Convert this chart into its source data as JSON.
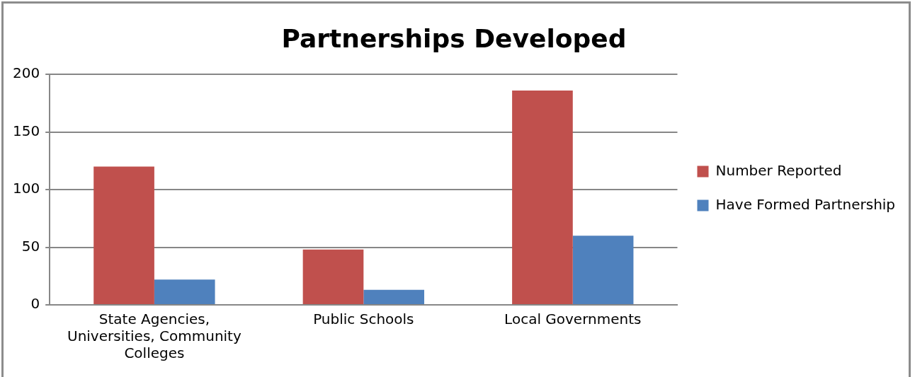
{
  "chart_data": {
    "type": "bar",
    "title": "Partnerships Developed",
    "categories": [
      "State Agencies, Universities, Community Colleges",
      "Public Schools",
      "Local Governments"
    ],
    "series": [
      {
        "name": "Number Reported",
        "color": "#c0504d",
        "values": [
          120,
          48,
          186
        ]
      },
      {
        "name": "Have Formed Partnership",
        "color": "#4f81bd",
        "values": [
          22,
          13,
          60
        ]
      }
    ],
    "ylim": [
      0,
      200
    ],
    "yticks": [
      0,
      50,
      100,
      150,
      200
    ],
    "grid": "y",
    "legend": "right"
  }
}
